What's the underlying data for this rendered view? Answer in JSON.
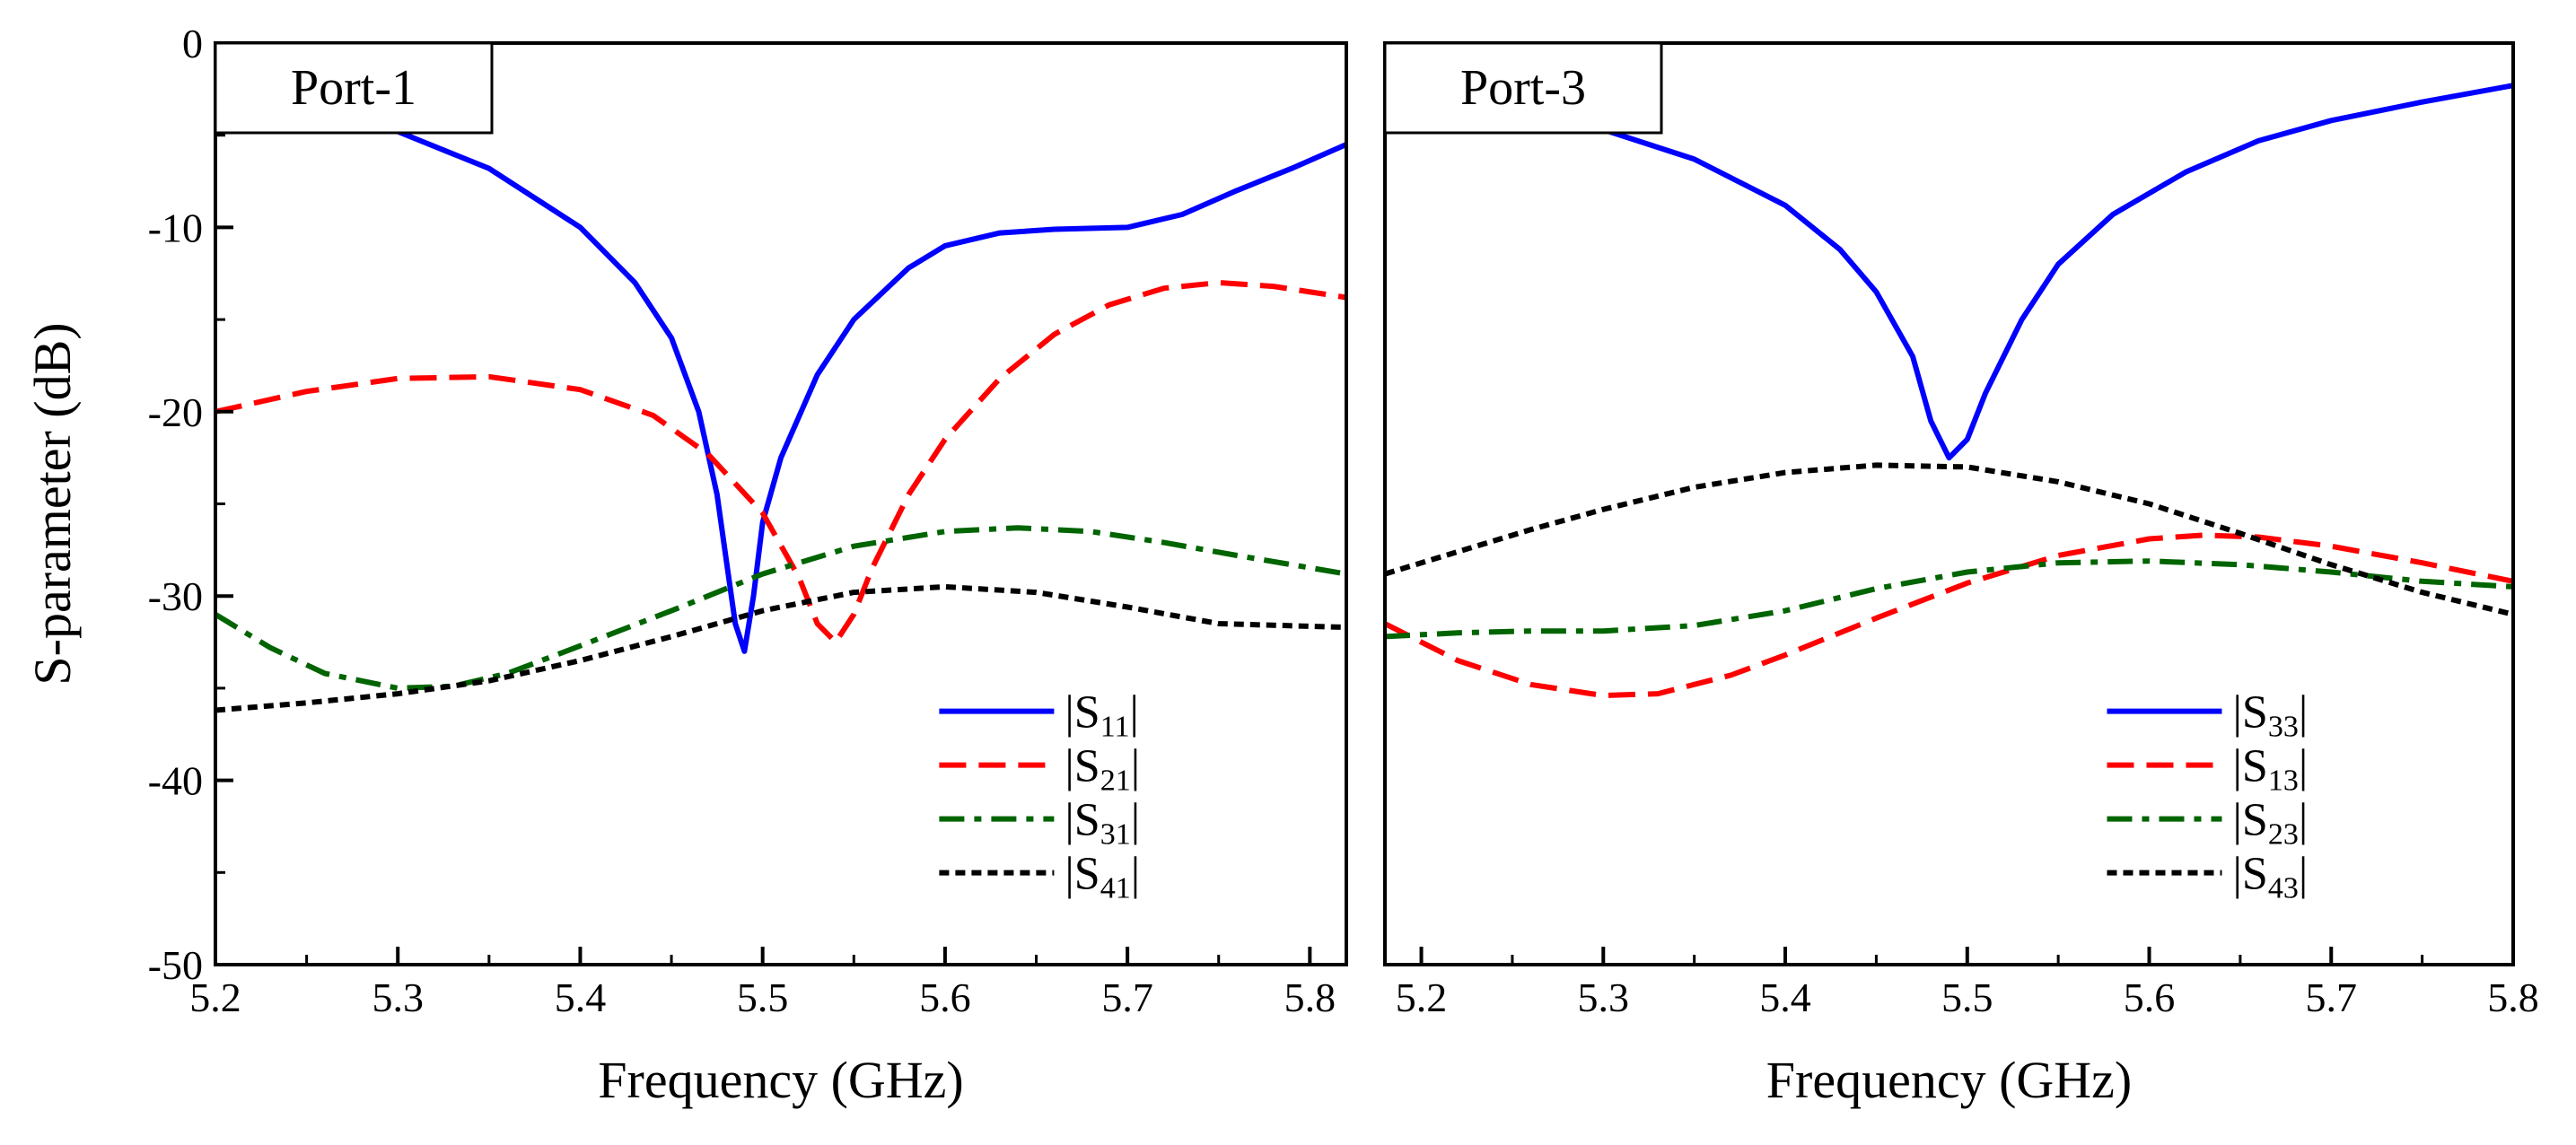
{
  "chart_data": [
    {
      "type": "line",
      "panel_label": "Port-1",
      "xlabel": "Frequency (GHz)",
      "ylabel": "S-parameter (dB)",
      "xlim": [
        5.2,
        5.82
      ],
      "ylim": [
        -50,
        0
      ],
      "xticks": [
        "5.2",
        "5.3",
        "5.4",
        "5.5",
        "5.6",
        "5.7",
        "5.8"
      ],
      "yticks": [
        "0",
        "-10",
        "-20",
        "-30",
        "-40",
        "-50"
      ],
      "grid": false,
      "legend_position": "lower-right",
      "series": [
        {
          "name": "|S11|",
          "label_main": "S",
          "label_sub": "11",
          "color": "#0000ff",
          "dash": "solid",
          "points": [
            [
              5.2,
              -3.0
            ],
            [
              5.25,
              -3.6
            ],
            [
              5.3,
              -4.8
            ],
            [
              5.35,
              -6.8
            ],
            [
              5.4,
              -10.0
            ],
            [
              5.43,
              -13.0
            ],
            [
              5.45,
              -16.0
            ],
            [
              5.465,
              -20.0
            ],
            [
              5.475,
              -24.5
            ],
            [
              5.48,
              -28.0
            ],
            [
              5.485,
              -31.5
            ],
            [
              5.49,
              -33.0
            ],
            [
              5.495,
              -30.0
            ],
            [
              5.5,
              -26.0
            ],
            [
              5.51,
              -22.5
            ],
            [
              5.53,
              -18.0
            ],
            [
              5.55,
              -15.0
            ],
            [
              5.58,
              -12.2
            ],
            [
              5.6,
              -11.0
            ],
            [
              5.63,
              -10.3
            ],
            [
              5.66,
              -10.1
            ],
            [
              5.7,
              -10.0
            ],
            [
              5.73,
              -9.3
            ],
            [
              5.76,
              -8.0
            ],
            [
              5.79,
              -6.8
            ],
            [
              5.82,
              -5.5
            ]
          ]
        },
        {
          "name": "|S21|",
          "label_main": "S",
          "label_sub": "21",
          "color": "#ff0000",
          "dash": "dashed",
          "points": [
            [
              5.2,
              -20.0
            ],
            [
              5.25,
              -18.9
            ],
            [
              5.3,
              -18.2
            ],
            [
              5.35,
              -18.1
            ],
            [
              5.4,
              -18.8
            ],
            [
              5.44,
              -20.2
            ],
            [
              5.47,
              -22.3
            ],
            [
              5.5,
              -25.5
            ],
            [
              5.52,
              -29.0
            ],
            [
              5.53,
              -31.5
            ],
            [
              5.54,
              -32.5
            ],
            [
              5.55,
              -31.0
            ],
            [
              5.56,
              -28.5
            ],
            [
              5.58,
              -24.5
            ],
            [
              5.6,
              -21.5
            ],
            [
              5.63,
              -18.2
            ],
            [
              5.66,
              -15.8
            ],
            [
              5.69,
              -14.2
            ],
            [
              5.72,
              -13.3
            ],
            [
              5.75,
              -13.0
            ],
            [
              5.78,
              -13.2
            ],
            [
              5.82,
              -13.8
            ]
          ]
        },
        {
          "name": "|S31|",
          "label_main": "S",
          "label_sub": "31",
          "color": "#006400",
          "dash": "dashdot",
          "points": [
            [
              5.2,
              -31.0
            ],
            [
              5.23,
              -32.8
            ],
            [
              5.26,
              -34.2
            ],
            [
              5.3,
              -35.0
            ],
            [
              5.33,
              -34.9
            ],
            [
              5.36,
              -34.2
            ],
            [
              5.4,
              -32.7
            ],
            [
              5.45,
              -30.8
            ],
            [
              5.5,
              -28.8
            ],
            [
              5.55,
              -27.3
            ],
            [
              5.6,
              -26.5
            ],
            [
              5.64,
              -26.3
            ],
            [
              5.68,
              -26.5
            ],
            [
              5.72,
              -27.1
            ],
            [
              5.76,
              -27.8
            ],
            [
              5.82,
              -28.8
            ]
          ]
        },
        {
          "name": "|S41|",
          "label_main": "S",
          "label_sub": "41",
          "color": "#000000",
          "dash": "dotted",
          "points": [
            [
              5.2,
              -36.2
            ],
            [
              5.25,
              -35.8
            ],
            [
              5.3,
              -35.3
            ],
            [
              5.35,
              -34.6
            ],
            [
              5.4,
              -33.5
            ],
            [
              5.45,
              -32.2
            ],
            [
              5.5,
              -30.8
            ],
            [
              5.55,
              -29.8
            ],
            [
              5.6,
              -29.5
            ],
            [
              5.65,
              -29.8
            ],
            [
              5.7,
              -30.6
            ],
            [
              5.75,
              -31.5
            ],
            [
              5.82,
              -31.7
            ]
          ]
        }
      ]
    },
    {
      "type": "line",
      "panel_label": "Port-3",
      "xlabel": "Frequency (GHz)",
      "ylabel": "",
      "xlim": [
        5.18,
        5.8
      ],
      "ylim": [
        -50,
        0
      ],
      "xticks": [
        "5.2",
        "5.3",
        "5.4",
        "5.5",
        "5.6",
        "5.7",
        "5.8"
      ],
      "yticks": [],
      "grid": false,
      "legend_position": "lower-right",
      "series": [
        {
          "name": "|S33|",
          "label_main": "S",
          "label_sub": "33",
          "color": "#0000ff",
          "dash": "solid",
          "points": [
            [
              5.18,
              -3.0
            ],
            [
              5.22,
              -3.3
            ],
            [
              5.26,
              -3.8
            ],
            [
              5.3,
              -4.7
            ],
            [
              5.35,
              -6.3
            ],
            [
              5.4,
              -8.8
            ],
            [
              5.43,
              -11.2
            ],
            [
              5.45,
              -13.5
            ],
            [
              5.47,
              -17.0
            ],
            [
              5.48,
              -20.5
            ],
            [
              5.49,
              -22.5
            ],
            [
              5.5,
              -21.5
            ],
            [
              5.51,
              -19.0
            ],
            [
              5.53,
              -15.0
            ],
            [
              5.55,
              -12.0
            ],
            [
              5.58,
              -9.3
            ],
            [
              5.62,
              -7.0
            ],
            [
              5.66,
              -5.3
            ],
            [
              5.7,
              -4.2
            ],
            [
              5.75,
              -3.2
            ],
            [
              5.8,
              -2.3
            ]
          ]
        },
        {
          "name": "|S13|",
          "label_main": "S",
          "label_sub": "13",
          "color": "#ff0000",
          "dash": "dashed",
          "points": [
            [
              5.18,
              -31.5
            ],
            [
              5.22,
              -33.5
            ],
            [
              5.26,
              -34.8
            ],
            [
              5.3,
              -35.4
            ],
            [
              5.33,
              -35.3
            ],
            [
              5.37,
              -34.3
            ],
            [
              5.4,
              -33.2
            ],
            [
              5.45,
              -31.2
            ],
            [
              5.5,
              -29.3
            ],
            [
              5.55,
              -27.8
            ],
            [
              5.6,
              -26.9
            ],
            [
              5.63,
              -26.7
            ],
            [
              5.66,
              -26.8
            ],
            [
              5.7,
              -27.3
            ],
            [
              5.75,
              -28.2
            ],
            [
              5.8,
              -29.2
            ]
          ]
        },
        {
          "name": "|S23|",
          "label_main": "S",
          "label_sub": "23",
          "color": "#006400",
          "dash": "dashdot",
          "points": [
            [
              5.18,
              -32.2
            ],
            [
              5.22,
              -32.0
            ],
            [
              5.26,
              -31.9
            ],
            [
              5.3,
              -31.9
            ],
            [
              5.35,
              -31.6
            ],
            [
              5.4,
              -30.8
            ],
            [
              5.45,
              -29.6
            ],
            [
              5.5,
              -28.7
            ],
            [
              5.55,
              -28.2
            ],
            [
              5.6,
              -28.1
            ],
            [
              5.65,
              -28.3
            ],
            [
              5.7,
              -28.7
            ],
            [
              5.75,
              -29.2
            ],
            [
              5.8,
              -29.5
            ]
          ]
        },
        {
          "name": "|S43|",
          "label_main": "S",
          "label_sub": "43",
          "color": "#000000",
          "dash": "dotted",
          "points": [
            [
              5.18,
              -28.8
            ],
            [
              5.22,
              -27.6
            ],
            [
              5.26,
              -26.4
            ],
            [
              5.3,
              -25.3
            ],
            [
              5.35,
              -24.1
            ],
            [
              5.4,
              -23.3
            ],
            [
              5.45,
              -22.9
            ],
            [
              5.5,
              -23.0
            ],
            [
              5.55,
              -23.8
            ],
            [
              5.6,
              -25.0
            ],
            [
              5.65,
              -26.6
            ],
            [
              5.7,
              -28.3
            ],
            [
              5.75,
              -29.8
            ],
            [
              5.8,
              -31.0
            ]
          ]
        }
      ]
    }
  ]
}
